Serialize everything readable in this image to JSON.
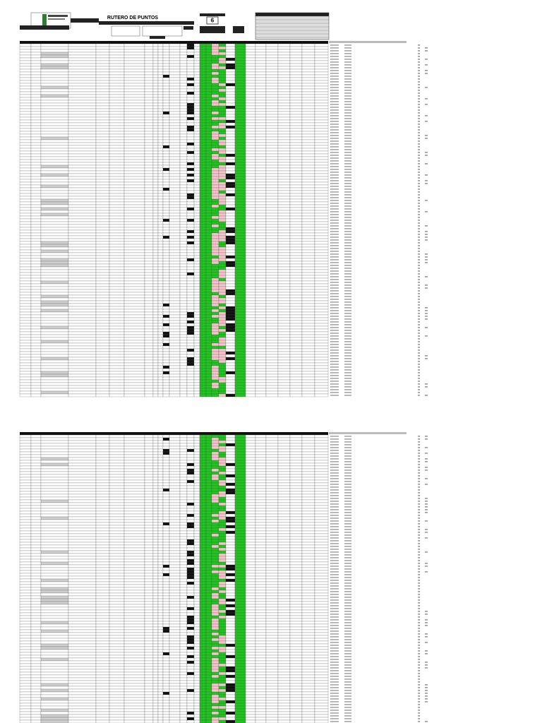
{
  "header": {
    "title": "RUTERO DE PUNTOS",
    "week": "6"
  }
}
